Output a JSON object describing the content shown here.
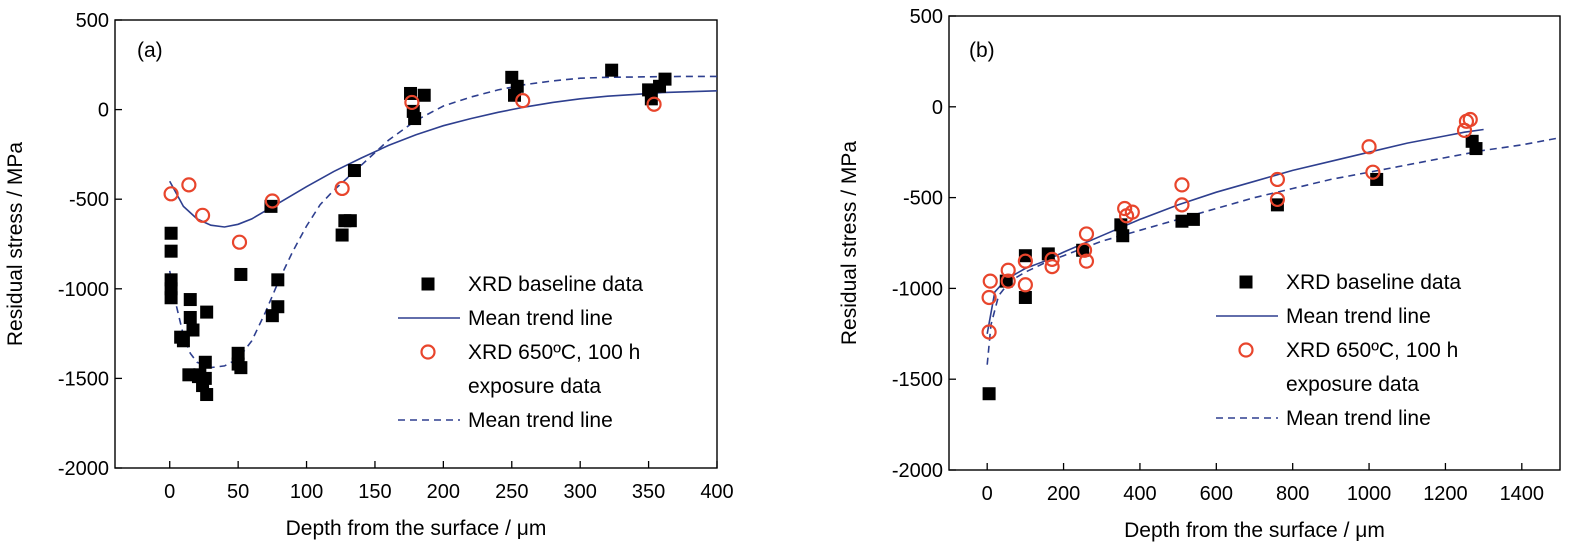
{
  "colors": {
    "navy": "#2e3f8f",
    "red": "#e8452c",
    "black": "#000000"
  },
  "chart_data": [
    {
      "type": "scatter",
      "panel_label": "(a)",
      "xlabel": "Depth from the surface / μm",
      "ylabel": "Residual stress / MPa",
      "xlim": [
        -40,
        400
      ],
      "ylim": [
        -2000,
        500
      ],
      "xticks": [
        0,
        50,
        100,
        150,
        200,
        250,
        300,
        350,
        400
      ],
      "yticks": [
        -2000,
        -1500,
        -1000,
        -500,
        0,
        500
      ],
      "grid": false,
      "legend_position": "center-right",
      "legend": [
        {
          "key": "baseline",
          "label": "XRD baseline data"
        },
        {
          "key": "solid",
          "label": "Mean trend line"
        },
        {
          "key": "exposure",
          "label": "XRD 650ºC, 100 h",
          "label_line2": "exposure data"
        },
        {
          "key": "dashed",
          "label": "Mean trend line"
        }
      ],
      "series": [
        {
          "key": "baseline",
          "name": "XRD baseline data",
          "kind": "square-marker",
          "points": [
            [
              1,
              -690
            ],
            [
              1,
              -790
            ],
            [
              1,
              -950
            ],
            [
              1,
              -1000
            ],
            [
              1,
              -1050
            ],
            [
              8,
              -1270
            ],
            [
              10,
              -1290
            ],
            [
              14,
              -1480
            ],
            [
              15,
              -1160
            ],
            [
              15,
              -1060
            ],
            [
              17,
              -1230
            ],
            [
              21,
              -1490
            ],
            [
              22,
              -1480
            ],
            [
              24,
              -1540
            ],
            [
              26,
              -1410
            ],
            [
              26,
              -1500
            ],
            [
              27,
              -1590
            ],
            [
              27,
              -1130
            ],
            [
              50,
              -1420
            ],
            [
              50,
              -1360
            ],
            [
              52,
              -1440
            ],
            [
              52,
              -920
            ],
            [
              74,
              -540
            ],
            [
              75,
              -1150
            ],
            [
              79,
              -1100
            ],
            [
              79,
              -950
            ],
            [
              126,
              -700
            ],
            [
              128,
              -620
            ],
            [
              132,
              -620
            ],
            [
              135,
              -340
            ],
            [
              176,
              90
            ],
            [
              178,
              -10
            ],
            [
              179,
              -50
            ],
            [
              186,
              80
            ],
            [
              250,
              180
            ],
            [
              252,
              80
            ],
            [
              254,
              130
            ],
            [
              323,
              220
            ],
            [
              350,
              110
            ],
            [
              352,
              60
            ],
            [
              358,
              130
            ],
            [
              362,
              170
            ]
          ]
        },
        {
          "key": "exposure",
          "name": "XRD 650ºC, 100 h exposure data",
          "kind": "circle-marker",
          "points": [
            [
              1,
              -470
            ],
            [
              14,
              -420
            ],
            [
              24,
              -590
            ],
            [
              51,
              -740
            ],
            [
              75,
              -510
            ],
            [
              126,
              -440
            ],
            [
              177,
              40
            ],
            [
              258,
              50
            ],
            [
              354,
              30
            ]
          ]
        },
        {
          "key": "solid",
          "name": "Mean trend line",
          "kind": "solid-line",
          "points": [
            [
              0,
              -400
            ],
            [
              10,
              -540
            ],
            [
              20,
              -610
            ],
            [
              30,
              -645
            ],
            [
              40,
              -655
            ],
            [
              50,
              -640
            ],
            [
              60,
              -610
            ],
            [
              70,
              -565
            ],
            [
              80,
              -520
            ],
            [
              100,
              -430
            ],
            [
              120,
              -345
            ],
            [
              140,
              -270
            ],
            [
              160,
              -200
            ],
            [
              180,
              -140
            ],
            [
              200,
              -90
            ],
            [
              220,
              -50
            ],
            [
              240,
              -15
            ],
            [
              260,
              15
            ],
            [
              280,
              40
            ],
            [
              300,
              60
            ],
            [
              320,
              75
            ],
            [
              340,
              85
            ],
            [
              360,
              95
            ],
            [
              380,
              100
            ],
            [
              400,
              105
            ]
          ]
        },
        {
          "key": "dashed",
          "name": "Mean trend line",
          "kind": "dashed-line",
          "points": [
            [
              0,
              -900
            ],
            [
              5,
              -1100
            ],
            [
              10,
              -1260
            ],
            [
              15,
              -1360
            ],
            [
              20,
              -1410
            ],
            [
              30,
              -1440
            ],
            [
              40,
              -1430
            ],
            [
              50,
              -1390
            ],
            [
              60,
              -1290
            ],
            [
              70,
              -1130
            ],
            [
              80,
              -950
            ],
            [
              90,
              -790
            ],
            [
              100,
              -650
            ],
            [
              110,
              -530
            ],
            [
              120,
              -450
            ],
            [
              130,
              -380
            ],
            [
              140,
              -310
            ],
            [
              160,
              -170
            ],
            [
              180,
              -60
            ],
            [
              200,
              20
            ],
            [
              220,
              70
            ],
            [
              240,
              110
            ],
            [
              260,
              140
            ],
            [
              280,
              160
            ],
            [
              300,
              175
            ],
            [
              320,
              180
            ],
            [
              340,
              182
            ],
            [
              360,
              184
            ],
            [
              380,
              185
            ],
            [
              400,
              185
            ]
          ]
        }
      ]
    },
    {
      "type": "scatter",
      "panel_label": "(b)",
      "xlabel": "Depth from the surface / μm",
      "ylabel": "Residual stress / MPa",
      "xlim": [
        -100,
        1500
      ],
      "ylim": [
        -2000,
        500
      ],
      "xticks": [
        0,
        200,
        400,
        600,
        800,
        1000,
        1200,
        1400
      ],
      "yticks": [
        -2000,
        -1500,
        -1000,
        -500,
        0,
        500
      ],
      "grid": false,
      "legend_position": "center-right",
      "legend": [
        {
          "key": "baseline",
          "label": "XRD baseline data"
        },
        {
          "key": "solid",
          "label": "Mean trend line"
        },
        {
          "key": "exposure",
          "label": "XRD 650ºC, 100 h",
          "label_line2": "exposure data"
        },
        {
          "key": "dashed",
          "label": "Mean trend line"
        }
      ],
      "series": [
        {
          "key": "baseline",
          "name": "XRD baseline data",
          "kind": "square-marker",
          "points": [
            [
              5,
              -1580
            ],
            [
              50,
              -960
            ],
            [
              100,
              -820
            ],
            [
              100,
              -1050
            ],
            [
              160,
              -810
            ],
            [
              250,
              -790
            ],
            [
              350,
              -650
            ],
            [
              355,
              -710
            ],
            [
              510,
              -630
            ],
            [
              540,
              -620
            ],
            [
              760,
              -540
            ],
            [
              1020,
              -400
            ],
            [
              1270,
              -190
            ],
            [
              1280,
              -230
            ]
          ]
        },
        {
          "key": "exposure",
          "name": "XRD 650ºC, 100 h exposure data",
          "kind": "circle-marker",
          "points": [
            [
              5,
              -1240
            ],
            [
              5,
              -1050
            ],
            [
              8,
              -960
            ],
            [
              55,
              -900
            ],
            [
              55,
              -960
            ],
            [
              100,
              -850
            ],
            [
              100,
              -980
            ],
            [
              170,
              -880
            ],
            [
              170,
              -840
            ],
            [
              255,
              -790
            ],
            [
              260,
              -850
            ],
            [
              260,
              -700
            ],
            [
              360,
              -560
            ],
            [
              365,
              -600
            ],
            [
              380,
              -580
            ],
            [
              510,
              -430
            ],
            [
              510,
              -540
            ],
            [
              760,
              -400
            ],
            [
              760,
              -510
            ],
            [
              1000,
              -220
            ],
            [
              1010,
              -360
            ],
            [
              1250,
              -130
            ],
            [
              1255,
              -80
            ],
            [
              1265,
              -70
            ]
          ]
        },
        {
          "key": "solid",
          "name": "Mean trend line",
          "kind": "solid-line",
          "points": [
            [
              0,
              -1250
            ],
            [
              20,
              -1020
            ],
            [
              50,
              -950
            ],
            [
              100,
              -890
            ],
            [
              150,
              -850
            ],
            [
              200,
              -800
            ],
            [
              300,
              -710
            ],
            [
              400,
              -620
            ],
            [
              500,
              -540
            ],
            [
              600,
              -470
            ],
            [
              700,
              -410
            ],
            [
              800,
              -350
            ],
            [
              900,
              -300
            ],
            [
              1000,
              -250
            ],
            [
              1100,
              -200
            ],
            [
              1200,
              -160
            ],
            [
              1250,
              -140
            ],
            [
              1300,
              -125
            ]
          ]
        },
        {
          "key": "dashed",
          "name": "Mean trend line",
          "kind": "dashed-line",
          "points": [
            [
              0,
              -1420
            ],
            [
              10,
              -1200
            ],
            [
              30,
              -1040
            ],
            [
              60,
              -960
            ],
            [
              100,
              -910
            ],
            [
              150,
              -860
            ],
            [
              200,
              -820
            ],
            [
              300,
              -740
            ],
            [
              400,
              -680
            ],
            [
              500,
              -620
            ],
            [
              600,
              -560
            ],
            [
              700,
              -500
            ],
            [
              800,
              -450
            ],
            [
              900,
              -400
            ],
            [
              1000,
              -360
            ],
            [
              1100,
              -320
            ],
            [
              1200,
              -280
            ],
            [
              1300,
              -240
            ],
            [
              1400,
              -210
            ],
            [
              1500,
              -170
            ]
          ]
        }
      ]
    }
  ]
}
